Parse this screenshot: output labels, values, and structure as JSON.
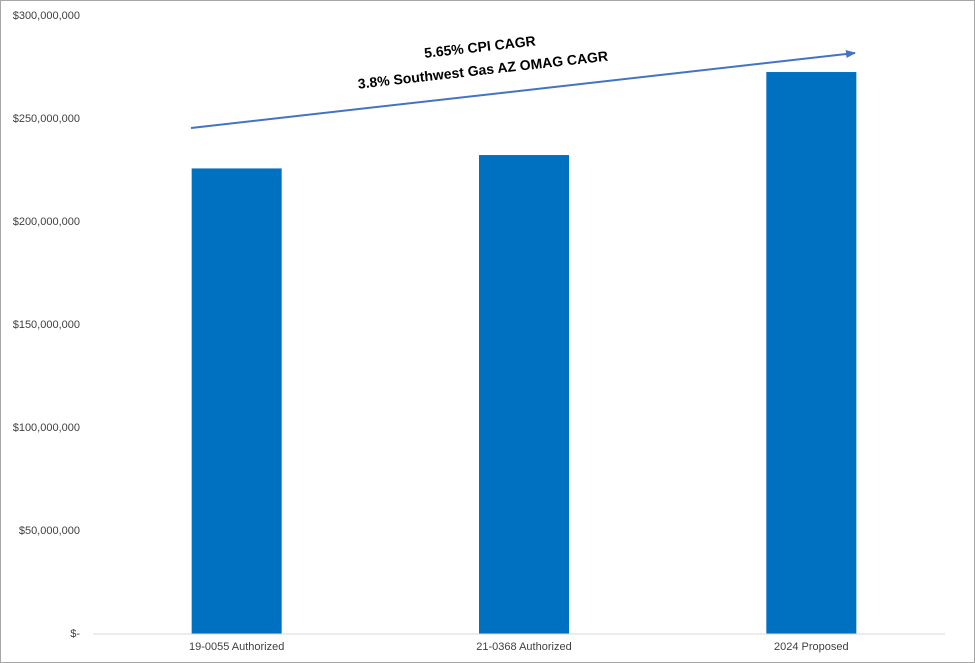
{
  "chart_data": {
    "type": "bar",
    "categories": [
      "19-0055 Authorized",
      "21-0368 Authorized",
      "2024 Proposed"
    ],
    "values": [
      226000000,
      232500000,
      272800000
    ],
    "color": "#0070c0",
    "ylim": [
      0,
      300000000
    ],
    "yticks": [
      {
        "value": 0,
        "label": "$-"
      },
      {
        "value": 50000000,
        "label": "$50,000,000"
      },
      {
        "value": 100000000,
        "label": "$100,000,000"
      },
      {
        "value": 150000000,
        "label": "$150,000,000"
      },
      {
        "value": 200000000,
        "label": "$200,000,000"
      },
      {
        "value": 250000000,
        "label": "$250,000,000"
      },
      {
        "value": 300000000,
        "label": "$300,000,000"
      }
    ],
    "grid": false,
    "annotations": [
      "5.65% CPI CAGR",
      "3.8% Southwest Gas AZ OMAG CAGR"
    ]
  }
}
